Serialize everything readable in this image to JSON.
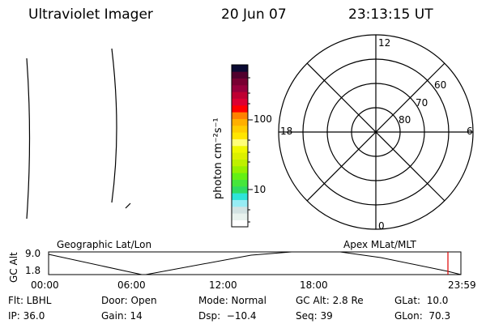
{
  "header": {
    "instrument": "Ultraviolet Imager",
    "date": "20 Jun 07",
    "time": "23:13:15 UT"
  },
  "colorbar": {
    "label": "photon cm⁻²s⁻¹",
    "ticks": [
      "100",
      "10"
    ],
    "colors": [
      "#ffffff",
      "#e8f2ee",
      "#d2e2e2",
      "#96ecf4",
      "#2ee4d8",
      "#2edc64",
      "#46e63c",
      "#64f014",
      "#96f000",
      "#bef000",
      "#dcf000",
      "#f0f800",
      "#ffff78",
      "#ffe600",
      "#ffcd00",
      "#ffaf00",
      "#ff8200",
      "#ff0000",
      "#dc0032",
      "#be0032",
      "#96003c",
      "#780032",
      "#50002d",
      "#0a0a32"
    ]
  },
  "polar": {
    "mlt_labels": {
      "top": "12",
      "left": "18",
      "right": "6",
      "bottom": "0"
    },
    "lat_labels": [
      "60",
      "70",
      "80"
    ]
  },
  "timeline": {
    "ylabel": "GC Alt",
    "yticks": [
      "9.0",
      "1.8"
    ],
    "left_label": "Geographic Lat/Lon",
    "right_label": "Apex MLat/MLT",
    "xticks": [
      "00:00",
      "06:00",
      "12:00",
      "18:00",
      "23:59"
    ],
    "current_marker_color": "#e00000"
  },
  "status": {
    "flt": "Flt: LBHL",
    "ip": "IP: 36.0",
    "door": "Door: Open",
    "gain": "Gain: 14",
    "mode": "Mode: Normal",
    "dsp": "Dsp:  −10.4",
    "gcalt": "GC Alt: 2.8 Re",
    "seq": "Seq: 39",
    "glat": "GLat:  10.0",
    "glon": "GLon:  70.3"
  }
}
